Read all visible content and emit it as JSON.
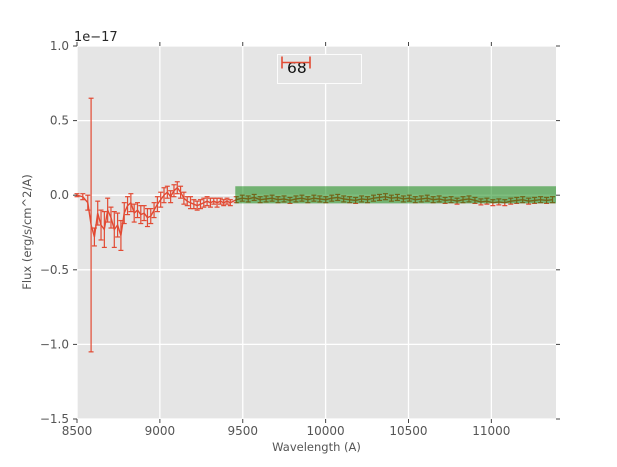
{
  "figure": {
    "background": "#ffffff",
    "axes_background": "#e5e5e5",
    "grid_color": "#ffffff",
    "tick_color": "#444444",
    "tick_label_color": "#555555",
    "offset_text": "1e−17",
    "offset_text_color": "#262626"
  },
  "chart_data": {
    "type": "line",
    "variant": "errorbar",
    "title": "",
    "xlabel": "Wavelength (A)",
    "ylabel": "Flux (erg/s/cm^2/A)",
    "y_scale_factor": "1e-17",
    "xlim": [
      8500,
      11390
    ],
    "ylim": [
      -1.5,
      1.0
    ],
    "grid": true,
    "x_ticks": {
      "values": [
        8500,
        9000,
        9500,
        10000,
        10500,
        11000
      ],
      "labels": [
        "8500",
        "9000",
        "9500",
        "10000",
        "10500",
        "11000"
      ]
    },
    "y_ticks": {
      "values": [
        1.0,
        0.5,
        0.0,
        -0.5,
        -1.0,
        -1.5
      ],
      "labels": [
        "1.0",
        "0.5",
        "0.0",
        "−0.5",
        "−1.0",
        "−1.5"
      ]
    },
    "legend": {
      "position": "upper center",
      "entries": [
        {
          "label": "68",
          "color": "#e24a33",
          "handle": "errorbar"
        }
      ]
    },
    "band": {
      "x_start": 9455,
      "x_end": 11390,
      "y_low": -0.055,
      "y_high": 0.06,
      "color": "#008000",
      "opacity": 0.5
    },
    "series": [
      {
        "name": "68",
        "color": "#e24a33",
        "x": [
          8500,
          8535,
          8565,
          8585,
          8605,
          8625,
          8645,
          8665,
          8685,
          8705,
          8725,
          8745,
          8765,
          8785,
          8805,
          8825,
          8845,
          8865,
          8885,
          8905,
          8925,
          8945,
          8965,
          8985,
          9005,
          9025,
          9045,
          9065,
          9085,
          9105,
          9125,
          9145,
          9165,
          9185,
          9205,
          9225,
          9245,
          9265,
          9285,
          9305,
          9325,
          9345,
          9365,
          9385,
          9405,
          9425,
          9461,
          9497,
          9533,
          9569,
          9605,
          9641,
          9677,
          9713,
          9749,
          9785,
          9821,
          9857,
          9893,
          9929,
          9965,
          10001,
          10037,
          10073,
          10109,
          10145,
          10181,
          10217,
          10253,
          10289,
          10325,
          10361,
          10397,
          10433,
          10469,
          10505,
          10541,
          10577,
          10613,
          10649,
          10685,
          10721,
          10757,
          10793,
          10829,
          10865,
          10901,
          10937,
          10973,
          11009,
          11045,
          11081,
          11117,
          11153,
          11189,
          11225,
          11261,
          11297,
          11333,
          11369
        ],
        "y": [
          0.0,
          -0.01,
          -0.05,
          -0.2,
          -0.28,
          -0.12,
          -0.2,
          -0.23,
          -0.1,
          -0.15,
          -0.23,
          -0.2,
          -0.27,
          -0.12,
          -0.07,
          -0.05,
          -0.12,
          -0.1,
          -0.13,
          -0.12,
          -0.15,
          -0.14,
          -0.1,
          -0.06,
          -0.03,
          0.0,
          0.02,
          -0.01,
          0.03,
          0.05,
          0.02,
          -0.02,
          -0.04,
          -0.05,
          -0.06,
          -0.07,
          -0.06,
          -0.05,
          -0.04,
          -0.05,
          -0.04,
          -0.05,
          -0.04,
          -0.05,
          -0.04,
          -0.05,
          -0.03,
          -0.02,
          -0.025,
          -0.015,
          -0.03,
          -0.025,
          -0.02,
          -0.03,
          -0.025,
          -0.035,
          -0.025,
          -0.02,
          -0.03,
          -0.02,
          -0.025,
          -0.03,
          -0.02,
          -0.015,
          -0.025,
          -0.03,
          -0.035,
          -0.025,
          -0.03,
          -0.02,
          -0.015,
          -0.01,
          -0.02,
          -0.015,
          -0.025,
          -0.02,
          -0.03,
          -0.025,
          -0.02,
          -0.03,
          -0.025,
          -0.035,
          -0.03,
          -0.04,
          -0.03,
          -0.025,
          -0.035,
          -0.045,
          -0.04,
          -0.05,
          -0.045,
          -0.05,
          -0.04,
          -0.035,
          -0.03,
          -0.04,
          -0.035,
          -0.03,
          -0.035,
          -0.03
        ],
        "yerr": [
          0.01,
          0.02,
          0.05,
          0.85,
          0.06,
          0.08,
          0.1,
          0.12,
          0.08,
          0.07,
          0.12,
          0.08,
          0.1,
          0.07,
          0.06,
          0.06,
          0.06,
          0.05,
          0.06,
          0.05,
          0.06,
          0.05,
          0.05,
          0.05,
          0.05,
          0.05,
          0.04,
          0.04,
          0.04,
          0.04,
          0.04,
          0.04,
          0.03,
          0.04,
          0.03,
          0.03,
          0.03,
          0.03,
          0.03,
          0.03,
          0.02,
          0.03,
          0.02,
          0.02,
          0.02,
          0.02,
          0.02,
          0.02,
          0.02,
          0.02,
          0.02,
          0.02,
          0.02,
          0.02,
          0.02,
          0.02,
          0.02,
          0.02,
          0.02,
          0.02,
          0.02,
          0.02,
          0.02,
          0.02,
          0.02,
          0.02,
          0.02,
          0.02,
          0.02,
          0.02,
          0.02,
          0.02,
          0.02,
          0.02,
          0.02,
          0.02,
          0.02,
          0.02,
          0.02,
          0.02,
          0.02,
          0.02,
          0.02,
          0.02,
          0.02,
          0.02,
          0.02,
          0.02,
          0.02,
          0.02,
          0.02,
          0.02,
          0.02,
          0.02,
          0.02,
          0.02,
          0.02,
          0.02,
          0.02,
          0.02
        ]
      }
    ]
  }
}
